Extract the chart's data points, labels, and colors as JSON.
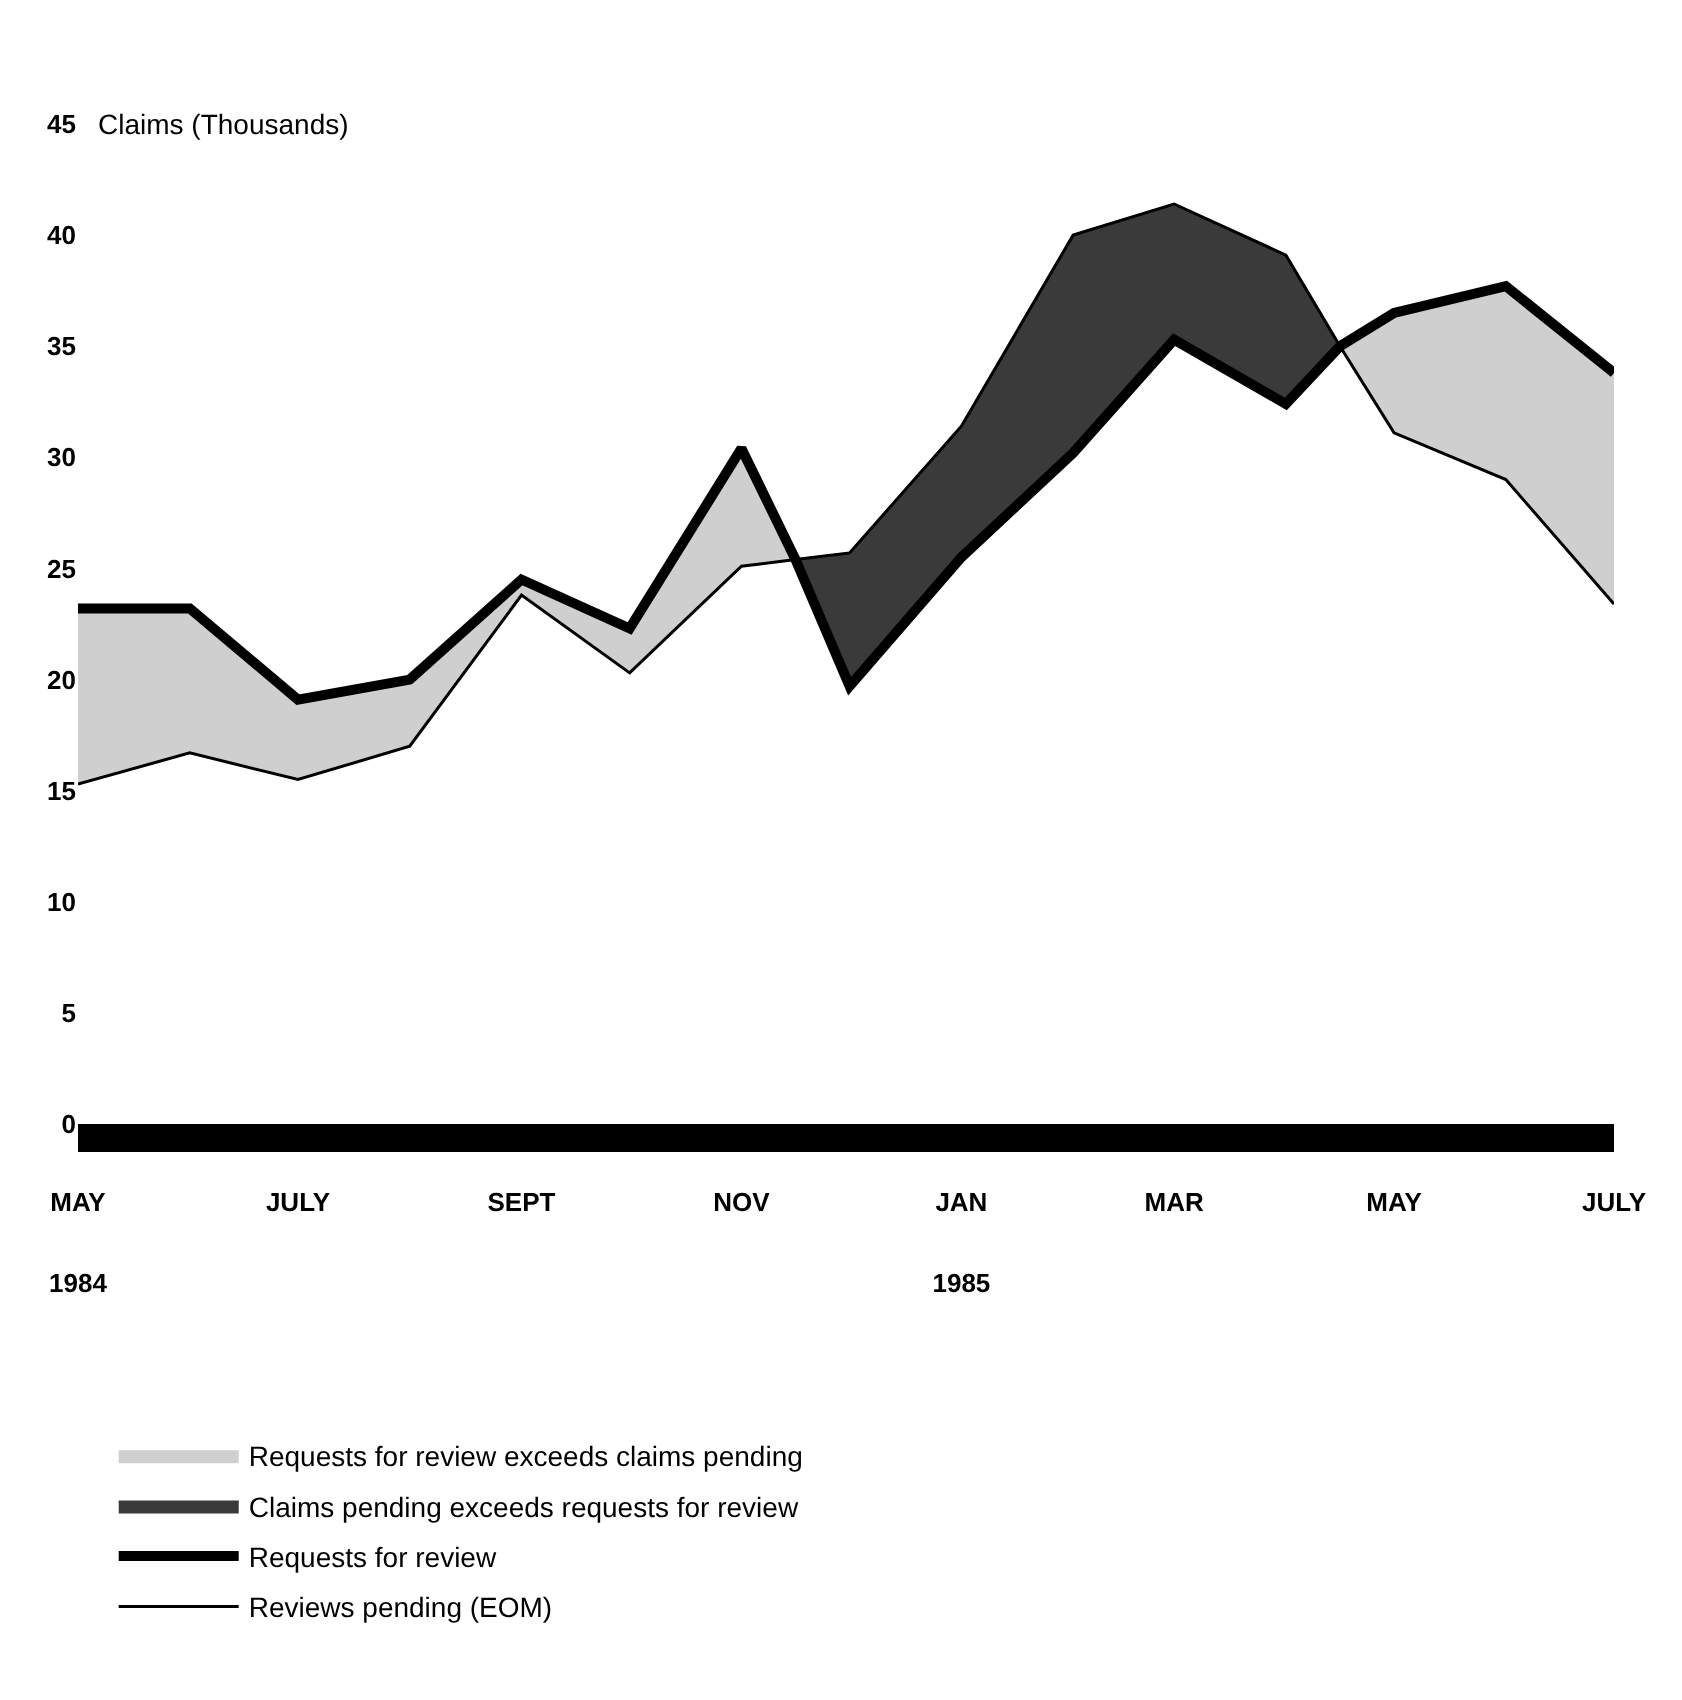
{
  "chart_data": {
    "type": "line",
    "ylabel": "Claims (Thousands)",
    "x": [
      "1984-05",
      "1984-06",
      "1984-07",
      "1984-08",
      "1984-09",
      "1984-10",
      "1984-11",
      "1984-11-16",
      "1984-12",
      "1985-01",
      "1985-02",
      "1985-03",
      "1985-04",
      "1985-04-16",
      "1985-05",
      "1985-06",
      "1985-07"
    ],
    "series": [
      {
        "type": "area",
        "name": "Requests for review exceeds claims pending",
        "color": "#cfcfcf",
        "values": [
          23.2,
          23.2,
          19.1,
          20.0,
          24.5,
          22.3,
          30.4,
          25.4,
          null,
          null,
          null,
          null,
          null,
          35.0,
          36.5,
          37.7,
          33.8
        ]
      },
      {
        "type": "area",
        "name": "Claims pending exceeds requests for review",
        "color": "#3a3a3a",
        "values": [
          null,
          null,
          null,
          null,
          null,
          null,
          null,
          25.4,
          25.7,
          31.4,
          40.0,
          41.4,
          39.1,
          35.0,
          null,
          null,
          null
        ]
      },
      {
        "name": "Requests for review",
        "color": "#000000",
        "line_style": "solid",
        "values": [
          23.2,
          23.2,
          19.1,
          20.0,
          24.5,
          22.3,
          30.4,
          25.4,
          19.7,
          25.5,
          30.2,
          35.3,
          32.4,
          35.0,
          36.5,
          37.7,
          33.8
        ]
      },
      {
        "name": "Reviews pending (EOM)",
        "color": "#000000",
        "line_style": "solid",
        "values": [
          15.3,
          16.7,
          15.5,
          17.0,
          23.8,
          20.3,
          25.1,
          25.4,
          25.7,
          31.4,
          40.0,
          41.4,
          39.1,
          35.0,
          31.1,
          29.0,
          23.4
        ]
      }
    ],
    "xlim": [
      "1984-05",
      "1985-07"
    ],
    "xticks": [
      {
        "value": "1984-05",
        "label": "MAY"
      },
      {
        "value": "1984-07",
        "label": "JULY"
      },
      {
        "value": "1984-09",
        "label": "SEPT"
      },
      {
        "value": "1984-11",
        "label": "NOV"
      },
      {
        "value": "1985-01",
        "label": "JAN"
      },
      {
        "value": "1985-03",
        "label": "MAR"
      },
      {
        "value": "1985-05",
        "label": "MAY"
      },
      {
        "value": "1985-07",
        "label": "JULY"
      }
    ],
    "x2lim": [
      "1984-05",
      "1985-07"
    ],
    "x2ticks": [
      {
        "value": "1984-05",
        "label": "1984"
      },
      {
        "value": "1985-01",
        "label": "1985"
      }
    ],
    "ylim": [
      0,
      45
    ],
    "yticks": [
      0,
      5,
      10,
      15,
      20,
      25,
      30,
      35,
      40,
      45
    ],
    "marker": "none",
    "legend": "bottom"
  }
}
